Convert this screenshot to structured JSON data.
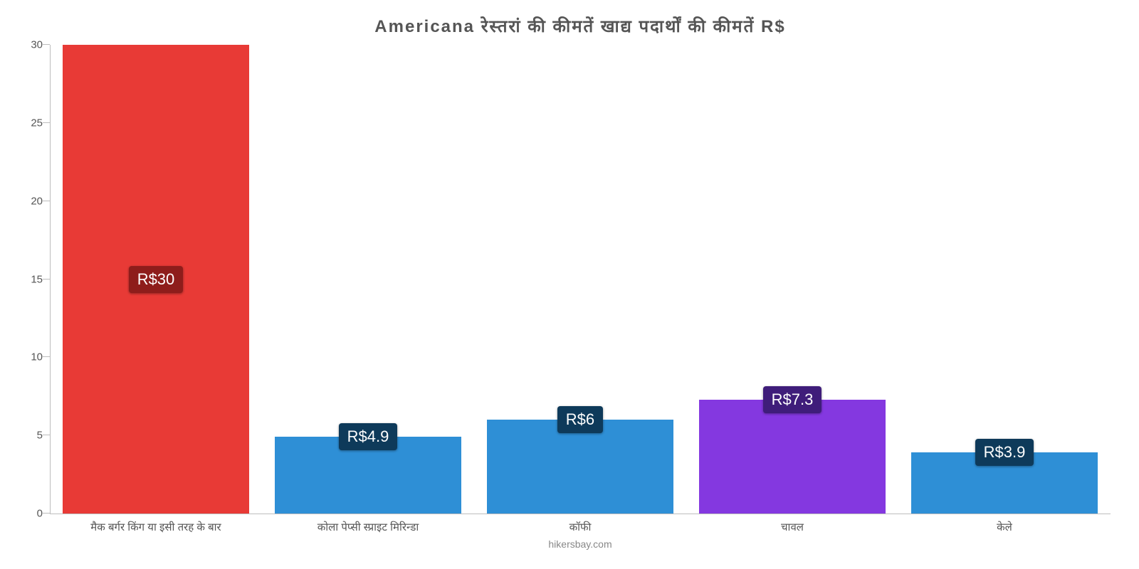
{
  "chart": {
    "type": "bar",
    "title": "Americana रेस्तरां    की    कीमतें    खाद्य    पदार्थों    की    कीमतें    R$",
    "title_fontsize": 24,
    "title_color": "#555555",
    "background_color": "#ffffff",
    "axis_color": "#bdbdbd",
    "tick_label_color": "#555555",
    "tick_label_fontsize": 15,
    "ylim": [
      0,
      30
    ],
    "ytick_step": 5,
    "yticks": [
      {
        "value": 0,
        "label": "0"
      },
      {
        "value": 5,
        "label": "5"
      },
      {
        "value": 10,
        "label": "10"
      },
      {
        "value": 15,
        "label": "15"
      },
      {
        "value": 20,
        "label": "20"
      },
      {
        "value": 25,
        "label": "25"
      },
      {
        "value": 30,
        "label": "30"
      }
    ],
    "bar_width_pct": 88,
    "bars": [
      {
        "category": "मैक बर्गर किंग या इसी तरह के बार",
        "value": 30,
        "bar_color": "#e83a36",
        "badge_text": "R$30",
        "badge_bg": "#8e1d1b",
        "badge_pos": "middle"
      },
      {
        "category": "कोला पेप्सी स्प्राइट मिरिन्डा",
        "value": 4.9,
        "bar_color": "#2e8fd6",
        "badge_text": "R$4.9",
        "badge_bg": "#0e3a5a",
        "badge_pos": "on-top"
      },
      {
        "category": "कॉफी",
        "value": 6,
        "bar_color": "#2e8fd6",
        "badge_text": "R$6",
        "badge_bg": "#0e3a5a",
        "badge_pos": "on-top"
      },
      {
        "category": "चावल",
        "value": 7.3,
        "bar_color": "#8438e0",
        "badge_text": "R$7.3",
        "badge_bg": "#3f1d7a",
        "badge_pos": "on-top"
      },
      {
        "category": "केले",
        "value": 3.9,
        "bar_color": "#2e8fd6",
        "badge_text": "R$3.9",
        "badge_bg": "#0e3a5a",
        "badge_pos": "on-top"
      }
    ],
    "attribution": "hikersbay.com",
    "attribution_color": "#888888",
    "attribution_fontsize": 14
  }
}
